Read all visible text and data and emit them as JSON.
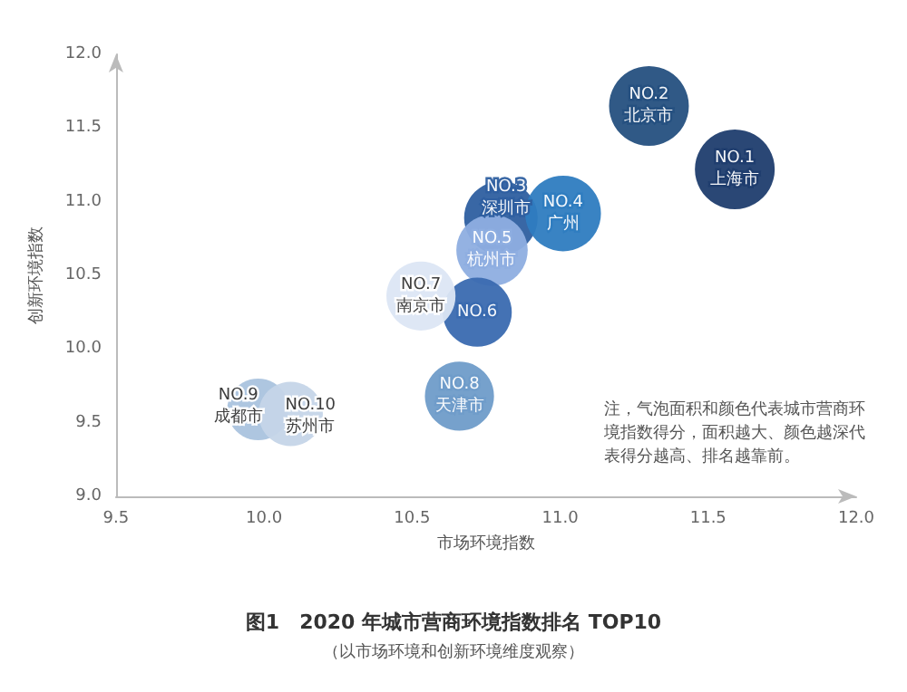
{
  "chart_data": {
    "type": "bubble",
    "title": "图1　2020 年城市营商环境指数排名 TOP10",
    "subtitle": "（以市场环境和创新环境维度观察）",
    "xlabel": "市场环境指数",
    "ylabel": "创新环境指数",
    "annotations": [
      "注，气泡面积和颜色代表城市营商环境指数得分，面积越大、颜色越深代表得分越高、排名越靠前。"
    ],
    "xlim": [
      9.5,
      12.0
    ],
    "xticks": [
      {
        "value": 9.5,
        "label": "9.5"
      },
      {
        "value": 10,
        "label": "10.0"
      },
      {
        "value": 10.5,
        "label": "10.5"
      },
      {
        "value": 11,
        "label": "11.0"
      },
      {
        "value": 11.5,
        "label": "11.5"
      },
      {
        "value": 12,
        "label": "12.0"
      }
    ],
    "ylim": [
      9.0,
      12.0
    ],
    "yticks": [
      {
        "value": 9,
        "label": "9.0"
      },
      {
        "value": 9.5,
        "label": "9.5"
      },
      {
        "value": 10,
        "label": "10.0"
      },
      {
        "value": 10.5,
        "label": "10.5"
      },
      {
        "value": 11,
        "label": "11.0"
      },
      {
        "value": 11.5,
        "label": "11.5"
      },
      {
        "value": 12,
        "label": "12.0"
      }
    ],
    "grid": false,
    "legend": false,
    "series": [
      {
        "name": "NO.1\n上海市",
        "color": "#1f3d6e",
        "x": [
          11.59
        ],
        "values": [
          11.22
        ],
        "sizes": [
          1
        ]
      },
      {
        "name": "NO.2\n北京市",
        "color": "#25507f",
        "x": [
          11.3
        ],
        "values": [
          11.65
        ],
        "sizes": [
          1
        ]
      },
      {
        "name": "NO.3\n深圳市",
        "color": "#2e5fa0",
        "x": [
          10.8
        ],
        "values": [
          10.89
        ],
        "sizes": [
          0.85
        ]
      },
      {
        "name": "NO.4\n广州",
        "color": "#2e7cc0",
        "x": [
          11.01
        ],
        "values": [
          10.92
        ],
        "sizes": [
          0.9
        ]
      },
      {
        "name": "NO.5\n杭州市",
        "color": "#8eaee0",
        "x": [
          10.77
        ],
        "values": [
          10.67
        ],
        "sizes": [
          0.8
        ]
      },
      {
        "name": "NO.6",
        "color": "#3a6ab0",
        "x": [
          10.72
        ],
        "values": [
          10.25
        ],
        "sizes": [
          0.75
        ]
      },
      {
        "name": "NO.7\n南京市",
        "color": "#dce6f4",
        "x": [
          10.53
        ],
        "values": [
          10.36
        ],
        "sizes": [
          0.75
        ]
      },
      {
        "name": "NO.8\n天津市",
        "color": "#6f9cc9",
        "x": [
          10.66
        ],
        "values": [
          9.68
        ],
        "sizes": [
          0.75
        ]
      },
      {
        "name": "NO.9\n成都市",
        "color": "#aac3de",
        "x": [
          9.98
        ],
        "values": [
          9.59
        ],
        "sizes": [
          0.6
        ]
      },
      {
        "name": "NO.10\n苏州市",
        "color": "#c5d5e8",
        "x": [
          10.09
        ],
        "values": [
          9.56
        ],
        "sizes": [
          0.65
        ]
      }
    ]
  }
}
